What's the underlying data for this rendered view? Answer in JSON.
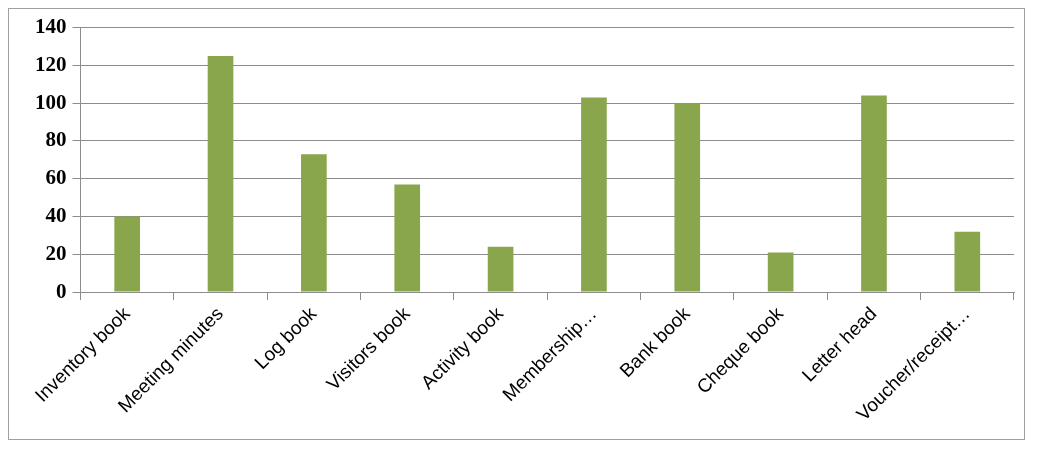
{
  "chart_data": {
    "type": "bar",
    "categories": [
      "Inventory book",
      "Meeting minutes",
      "Log book",
      "Visitors book",
      "Activity book",
      "Membership…",
      "Bank book",
      "Cheque book",
      "Letter head",
      "Voucher/receipt…"
    ],
    "values": [
      40,
      125,
      73,
      57,
      24,
      103,
      100,
      21,
      104,
      32
    ],
    "color": "#8aa64d",
    "ylim": [
      0,
      140
    ],
    "yticks": [
      0,
      20,
      40,
      60,
      80,
      100,
      120,
      140
    ],
    "grid": "y",
    "legend": false
  }
}
